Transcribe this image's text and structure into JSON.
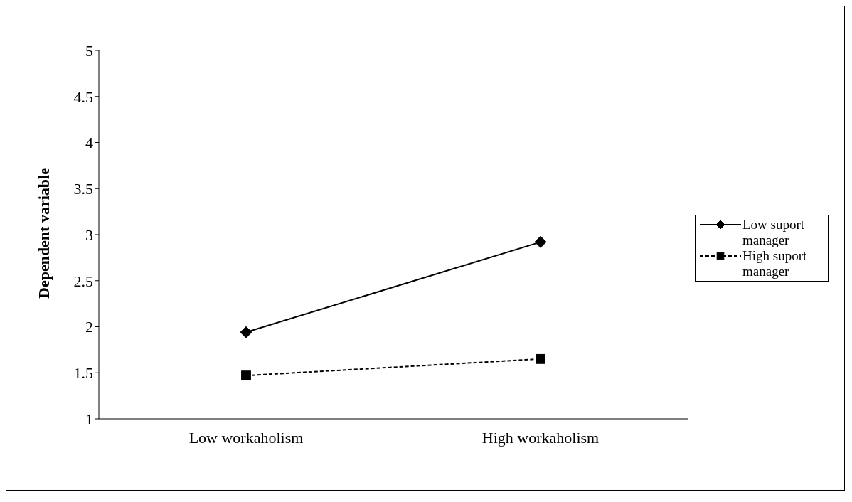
{
  "chart_data": {
    "type": "line",
    "ylabel": "Dependent variable",
    "categories": [
      "Low workaholism",
      "High workaholism"
    ],
    "series": [
      {
        "name": "Low suport manager",
        "color": "#000000",
        "values": [
          1.94,
          2.92
        ],
        "marker": "diamond",
        "line_style": "solid"
      },
      {
        "name": "High suport manager",
        "color": "#000000",
        "values": [
          1.47,
          1.65
        ],
        "marker": "square",
        "line_style": "dashed"
      }
    ],
    "ylim": [
      1,
      5
    ],
    "yticks": [
      1,
      1.5,
      2,
      2.5,
      3,
      3.5,
      4,
      4.5,
      5
    ],
    "grid": false,
    "legend": "right"
  }
}
